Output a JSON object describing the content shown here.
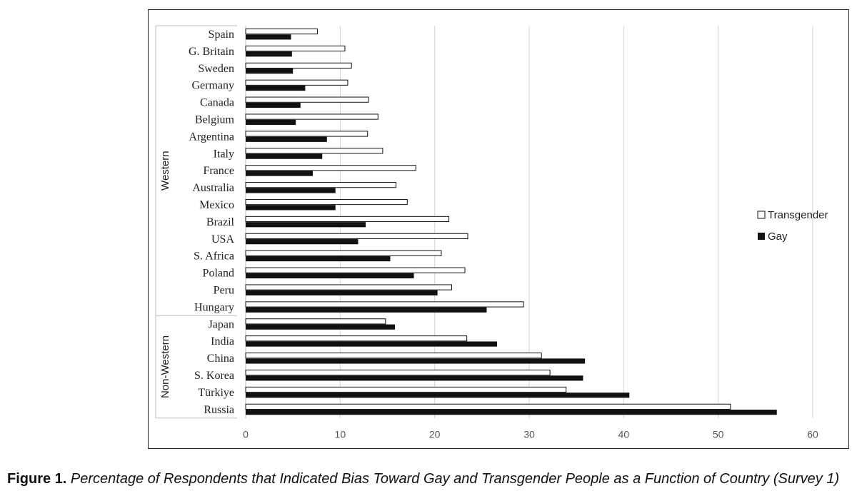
{
  "chart_data": {
    "type": "bar",
    "orientation": "horizontal",
    "categories": [
      "Spain",
      "G. Britain",
      "Sweden",
      "Germany",
      "Canada",
      "Belgium",
      "Argentina",
      "Italy",
      "France",
      "Australia",
      "Mexico",
      "Brazil",
      "USA",
      "S. Africa",
      "Poland",
      "Peru",
      "Hungary",
      "Japan",
      "India",
      "China",
      "S. Korea",
      "Türkiye",
      "Russia"
    ],
    "groups": [
      {
        "label": "Western",
        "categories": [
          "Spain",
          "G. Britain",
          "Sweden",
          "Germany",
          "Canada",
          "Belgium",
          "Argentina",
          "Italy",
          "France",
          "Australia",
          "Mexico",
          "Brazil",
          "USA",
          "S. Africa",
          "Poland",
          "Peru",
          "Hungary"
        ]
      },
      {
        "label": "Non-Western",
        "categories": [
          "Japan",
          "India",
          "China",
          "S. Korea",
          "Türkiye",
          "Russia"
        ]
      }
    ],
    "series": [
      {
        "name": "Transgender",
        "color": "#ffffff",
        "stroke": "#111111",
        "values": [
          7.6,
          10.5,
          11.2,
          10.8,
          13.0,
          14.0,
          12.9,
          14.5,
          18.0,
          15.9,
          17.1,
          21.5,
          23.5,
          20.7,
          23.2,
          21.8,
          29.4,
          14.8,
          23.4,
          31.3,
          32.2,
          33.9,
          51.3
        ]
      },
      {
        "name": "Gay",
        "color": "#111111",
        "values": [
          4.8,
          4.9,
          5.0,
          6.3,
          5.8,
          5.3,
          8.6,
          8.1,
          7.1,
          9.5,
          9.5,
          12.7,
          11.9,
          15.3,
          17.8,
          20.3,
          25.5,
          15.8,
          26.6,
          35.9,
          35.7,
          40.6,
          56.2
        ]
      }
    ],
    "xlim": [
      0,
      60
    ],
    "xticks": [
      "0",
      "10",
      "20",
      "30",
      "40",
      "50",
      "60"
    ],
    "grid": true,
    "legend": "right"
  },
  "caption": {
    "label": "Figure 1.",
    "text": "Percentage of Respondents that Indicated Bias Toward Gay and Transgender People as a Function of Country (Survey 1)"
  }
}
